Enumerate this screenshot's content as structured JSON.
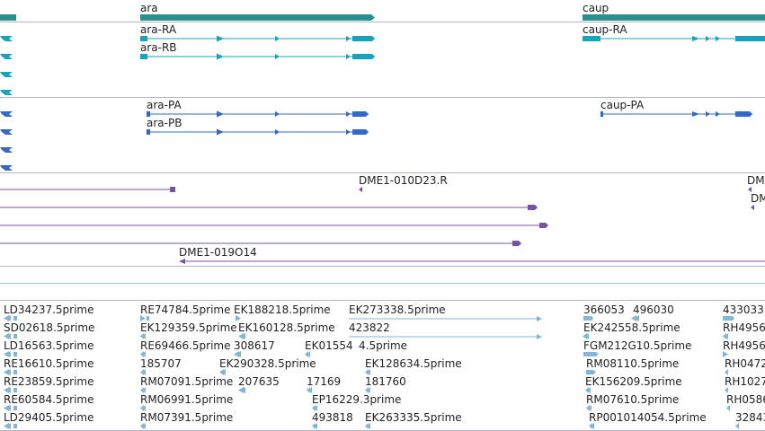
{
  "colors": {
    "genes": "#2b8f8d",
    "flybase_transcripts": "#17a2bd",
    "predicted_transcripts": "#3368c8",
    "alignments": "#7852a3",
    "ests": "#80b6d8",
    "track_separator": "#b5b5c8",
    "cyan_rule": "#8fd0d8"
  },
  "tracks": {
    "genes": {
      "items": [
        "ara",
        "caup"
      ]
    },
    "flybase_transcripts": {
      "items": [
        "ara-RA",
        "ara-RB",
        "caup-RA"
      ]
    },
    "predicted_transcripts": {
      "items": [
        "ara-PA",
        "ara-PB",
        "caup-PA"
      ]
    },
    "alignments": {
      "items": [
        "DME1-010D23.R",
        "DME1-019O14",
        "DM",
        "DM"
      ]
    },
    "ests": {
      "items": [
        "LD34237.5prime",
        "RE74784.5prime",
        "EK188218.5prime",
        "EK273338.5prime",
        "366053",
        "496030",
        "433033",
        "SD02618.5prime",
        "EK129359.5prime",
        "EK160128.5prime",
        "423822",
        "EK242558.5prime",
        "RH4956",
        "LD16563.5prime",
        "RE69466.5prime",
        "308617",
        "EK01554",
        "4.5prime",
        "FGM212G10.5prime",
        "RH4956",
        "RE16610.5prime",
        "185707",
        "EK290328.5prime",
        "EK128634.5prime",
        "RM08110.5prime",
        "RH0472",
        "RE23859.5prime",
        "RM07091.5prime",
        "207635",
        "17169",
        "181760",
        "EK156209.5prime",
        "RH1027",
        "RE60584.5prime",
        "RM06991.5prime",
        "EP16229.3prime",
        "RM07610.5prime",
        "RH0586",
        "LD29405.5prime",
        "RM07391.5prime",
        "493818",
        "EK263335.5prime",
        "RP001014054.5prime",
        "32843"
      ]
    }
  }
}
